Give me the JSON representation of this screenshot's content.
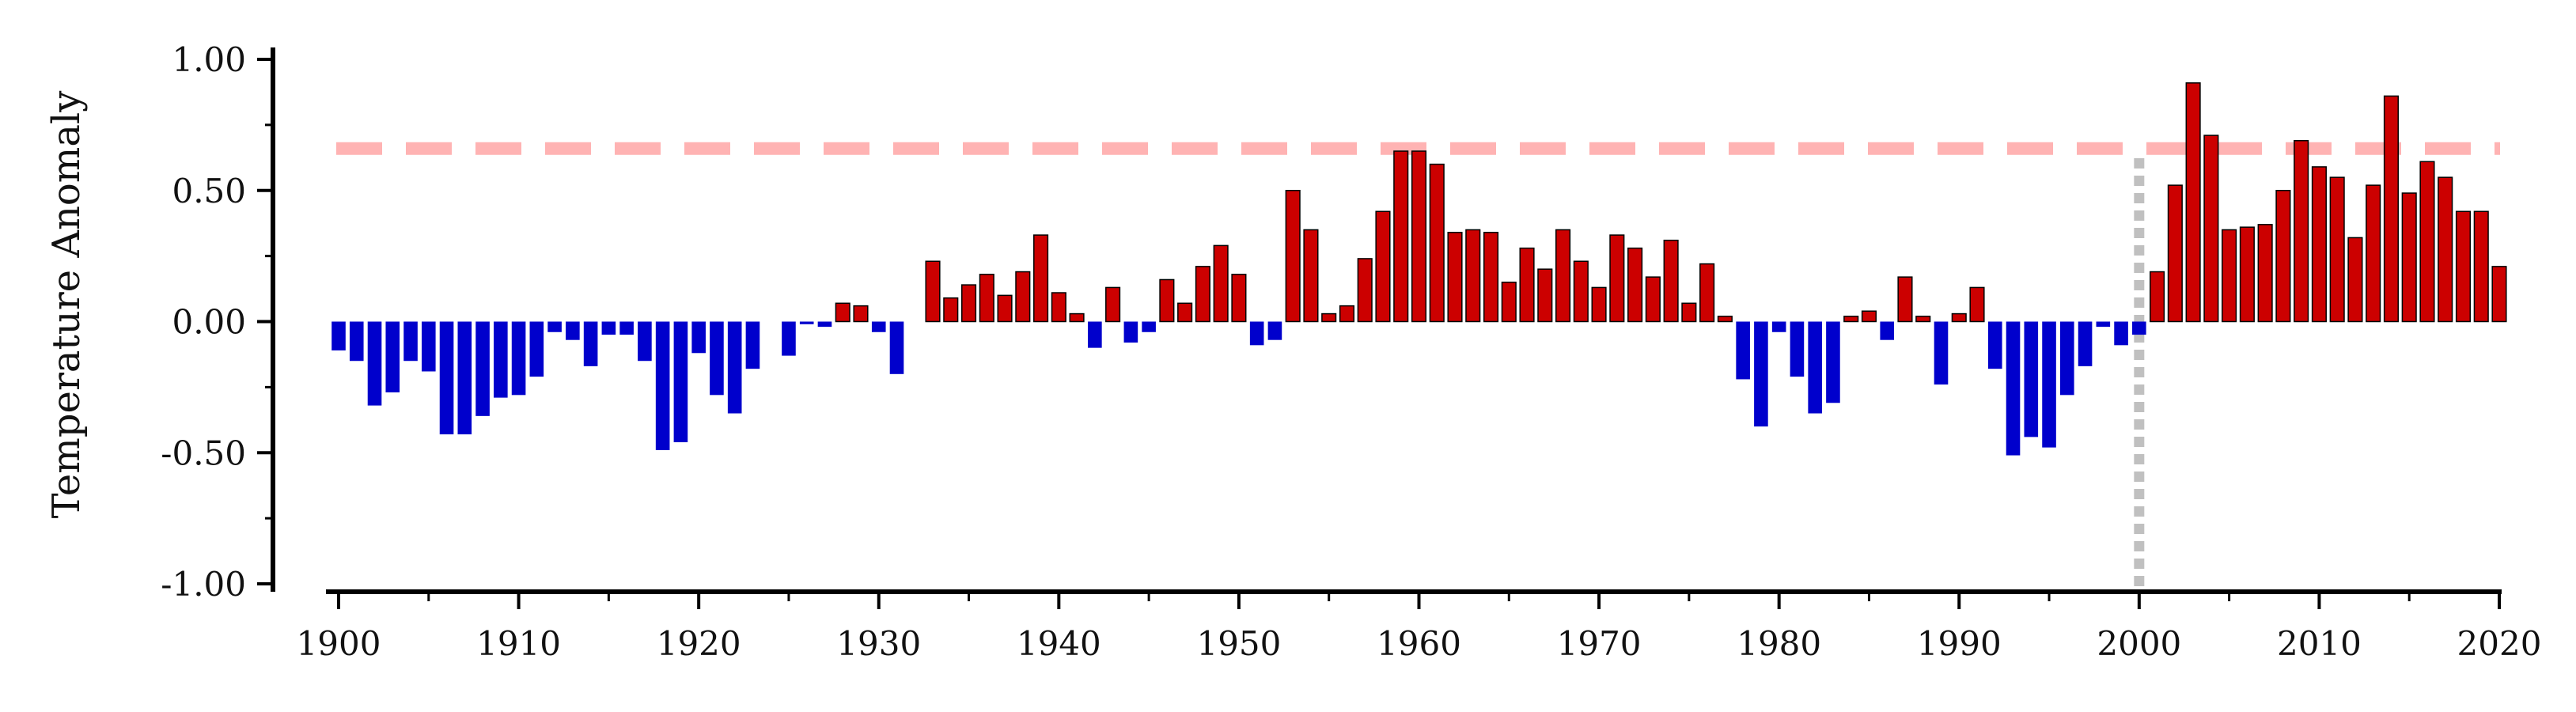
{
  "chart_data": {
    "type": "bar",
    "ylabel": "Temperature Anomaly",
    "xlim": [
      1900,
      2020
    ],
    "ylim": [
      -1.0,
      1.0
    ],
    "x_ticks": [
      1900,
      1910,
      1920,
      1930,
      1940,
      1950,
      1960,
      1970,
      1980,
      1990,
      2000,
      2010,
      2020
    ],
    "y_ticks": [
      "1.00",
      "0.50",
      "0.00",
      "-0.50",
      "-1.00"
    ],
    "y_tick_values": [
      1.0,
      0.5,
      0.0,
      -0.5,
      -1.0
    ],
    "reference_line_y": 0.66,
    "reference_line_x": 2000,
    "colors": {
      "positive": "#cc0000",
      "negative": "#0000cc",
      "reference_line_h": "#ffb3b3",
      "reference_line_v": "#c0c0c0"
    },
    "x": [
      1900,
      1901,
      1902,
      1903,
      1904,
      1905,
      1906,
      1907,
      1908,
      1909,
      1910,
      1911,
      1912,
      1913,
      1914,
      1915,
      1916,
      1917,
      1918,
      1919,
      1920,
      1921,
      1922,
      1923,
      1924,
      1925,
      1926,
      1927,
      1928,
      1929,
      1930,
      1931,
      1932,
      1933,
      1934,
      1935,
      1936,
      1937,
      1938,
      1939,
      1940,
      1941,
      1942,
      1943,
      1944,
      1945,
      1946,
      1947,
      1948,
      1949,
      1950,
      1951,
      1952,
      1953,
      1954,
      1955,
      1956,
      1957,
      1958,
      1959,
      1960,
      1961,
      1962,
      1963,
      1964,
      1965,
      1966,
      1967,
      1968,
      1969,
      1970,
      1971,
      1972,
      1973,
      1974,
      1975,
      1976,
      1977,
      1978,
      1979,
      1980,
      1981,
      1982,
      1983,
      1984,
      1985,
      1986,
      1987,
      1988,
      1989,
      1990,
      1991,
      1992,
      1993,
      1994,
      1995,
      1996,
      1997,
      1998,
      1999,
      2000,
      2001,
      2002,
      2003,
      2004,
      2005,
      2006,
      2007,
      2008,
      2009,
      2010,
      2011,
      2012,
      2013,
      2014,
      2015,
      2016,
      2017,
      2018,
      2019,
      2020
    ],
    "values": [
      -0.11,
      -0.15,
      -0.32,
      -0.27,
      -0.15,
      -0.19,
      -0.43,
      -0.43,
      -0.36,
      -0.29,
      -0.28,
      -0.21,
      -0.04,
      -0.07,
      -0.17,
      -0.05,
      -0.05,
      -0.15,
      -0.49,
      -0.46,
      -0.12,
      -0.28,
      -0.35,
      -0.18,
      0.0,
      -0.13,
      -0.01,
      -0.02,
      0.07,
      0.06,
      -0.04,
      -0.2,
      0.0,
      0.23,
      0.09,
      0.14,
      0.18,
      0.1,
      0.19,
      0.33,
      0.11,
      0.03,
      -0.1,
      0.13,
      -0.08,
      -0.04,
      0.16,
      0.07,
      0.21,
      0.29,
      0.18,
      -0.09,
      -0.07,
      0.5,
      0.35,
      0.03,
      0.06,
      0.24,
      0.42,
      0.65,
      0.65,
      0.6,
      0.34,
      0.35,
      0.34,
      0.15,
      0.28,
      0.2,
      0.35,
      0.23,
      0.13,
      0.33,
      0.28,
      0.17,
      0.31,
      0.07,
      0.22,
      0.02,
      -0.22,
      -0.4,
      -0.04,
      -0.21,
      -0.35,
      -0.31,
      0.02,
      0.04,
      -0.07,
      0.17,
      0.02,
      -0.24,
      0.03,
      0.13,
      -0.18,
      -0.51,
      -0.44,
      -0.48,
      -0.28,
      -0.17,
      -0.02,
      -0.09,
      -0.05,
      0.19,
      0.52,
      0.91,
      0.71,
      0.35,
      0.36,
      0.37,
      0.5,
      0.69,
      0.59,
      0.55,
      0.32,
      0.52,
      0.86,
      0.49,
      0.61,
      0.55,
      0.42,
      0.42,
      0.21
    ]
  }
}
